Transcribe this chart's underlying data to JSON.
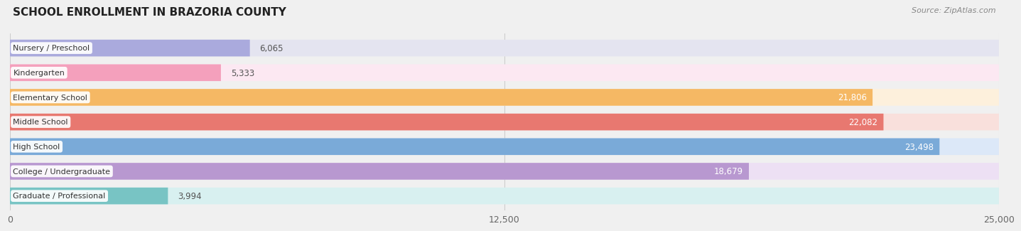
{
  "title": "SCHOOL ENROLLMENT IN BRAZORIA COUNTY",
  "source": "Source: ZipAtlas.com",
  "categories": [
    "Nursery / Preschool",
    "Kindergarten",
    "Elementary School",
    "Middle School",
    "High School",
    "College / Undergraduate",
    "Graduate / Professional"
  ],
  "values": [
    6065,
    5333,
    21806,
    22082,
    23498,
    18679,
    3994
  ],
  "bar_colors": [
    "#aaaadd",
    "#f4a0bc",
    "#f5b864",
    "#e87870",
    "#7aaad8",
    "#b898d0",
    "#78c4c4"
  ],
  "bar_bg_colors": [
    "#e4e4f0",
    "#fce8f2",
    "#fdf0dc",
    "#f9e0dc",
    "#dce8f8",
    "#ede0f4",
    "#d8f0f0"
  ],
  "xlim": [
    0,
    25000
  ],
  "xticks": [
    0,
    12500,
    25000
  ],
  "xtick_labels": [
    "0",
    "12,500",
    "25,000"
  ],
  "value_fontsize": 8.5,
  "label_fontsize": 8,
  "title_fontsize": 11,
  "background_color": "#f0f0f0"
}
